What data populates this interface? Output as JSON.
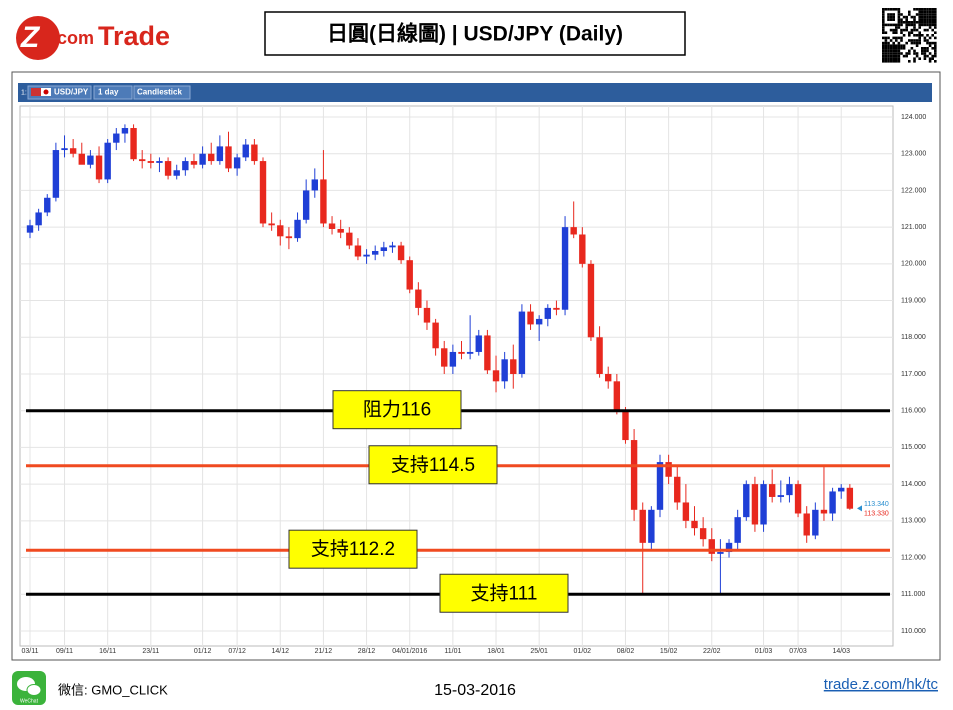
{
  "header": {
    "logo_mark": "Z",
    "logo_text": ".com",
    "logo_brand": "Trade",
    "title": "日圓(日線圖) | USD/JPY (Daily)"
  },
  "toolbar": {
    "index": "1:",
    "symbol": "USD/JPY",
    "interval": "1 day",
    "style": "Candlestick"
  },
  "chart_data": {
    "type": "candlestick",
    "categories": [
      "03/11",
      null,
      null,
      null,
      "09/11",
      null,
      null,
      null,
      null,
      "16/11",
      null,
      null,
      null,
      null,
      "23/11",
      null,
      null,
      null,
      null,
      null,
      "01/12",
      null,
      null,
      null,
      "07/12",
      null,
      null,
      null,
      null,
      "14/12",
      null,
      null,
      null,
      null,
      "21/12",
      null,
      null,
      null,
      null,
      "28/12",
      null,
      null,
      null,
      null,
      "04/01/2016",
      null,
      null,
      null,
      null,
      "11/01",
      null,
      null,
      null,
      null,
      "18/01",
      null,
      null,
      null,
      null,
      "25/01",
      null,
      null,
      null,
      null,
      "01/02",
      null,
      null,
      null,
      null,
      "08/02",
      null,
      null,
      null,
      null,
      "15/02",
      null,
      null,
      null,
      null,
      "22/02",
      null,
      null,
      null,
      null,
      null,
      "01/03",
      null,
      null,
      null,
      "07/03",
      null,
      null,
      null,
      null,
      "14/03",
      null
    ],
    "open": [
      120.85,
      121.05,
      121.4,
      121.8,
      123.1,
      123.15,
      123.0,
      122.7,
      122.95,
      122.3,
      123.3,
      123.55,
      123.7,
      122.85,
      122.8,
      122.75,
      122.8,
      122.4,
      122.55,
      122.8,
      122.7,
      123.0,
      122.8,
      123.2,
      122.6,
      122.9,
      123.25,
      122.8,
      121.1,
      121.05,
      120.75,
      120.7,
      121.2,
      122.0,
      122.3,
      121.1,
      120.95,
      120.85,
      120.5,
      120.2,
      120.25,
      120.35,
      120.45,
      120.5,
      120.1,
      119.3,
      118.8,
      118.4,
      117.7,
      117.2,
      117.6,
      117.55,
      117.6,
      118.05,
      117.1,
      116.8,
      117.4,
      117.0,
      118.7,
      118.35,
      118.5,
      118.8,
      118.75,
      121.0,
      120.8,
      120.0,
      118.0,
      117.0,
      116.8,
      116.0,
      115.2,
      113.3,
      112.4,
      113.3,
      114.6,
      114.2,
      113.5,
      113.0,
      112.8,
      112.5,
      112.1,
      112.15,
      112.4,
      113.1,
      114.0,
      112.9,
      114.0,
      113.65,
      113.7,
      114.0,
      113.2,
      112.6,
      113.3,
      113.2,
      113.8,
      113.9
    ],
    "high": [
      121.2,
      121.5,
      121.9,
      123.3,
      123.5,
      123.4,
      123.3,
      123.1,
      123.2,
      123.4,
      123.7,
      123.8,
      123.8,
      123.1,
      123.0,
      122.9,
      122.9,
      122.7,
      122.9,
      123.0,
      123.2,
      123.3,
      123.5,
      123.6,
      123.0,
      123.4,
      123.4,
      122.9,
      121.4,
      121.2,
      121.0,
      121.4,
      122.3,
      122.6,
      123.1,
      121.3,
      121.2,
      121.0,
      120.7,
      120.4,
      120.5,
      120.6,
      120.6,
      120.6,
      120.2,
      119.5,
      119.0,
      118.5,
      117.9,
      117.8,
      117.9,
      118.6,
      118.2,
      118.2,
      117.5,
      117.6,
      117.8,
      118.9,
      118.9,
      118.6,
      118.9,
      119.0,
      121.3,
      121.7,
      121.0,
      120.1,
      118.3,
      117.2,
      117.0,
      116.1,
      115.5,
      113.5,
      113.4,
      114.8,
      114.8,
      114.5,
      114.0,
      113.4,
      113.1,
      112.8,
      112.5,
      112.5,
      113.3,
      114.1,
      114.2,
      114.1,
      114.4,
      114.1,
      114.2,
      114.1,
      113.4,
      113.5,
      114.5,
      113.9,
      114.0,
      114.0
    ],
    "low": [
      120.7,
      120.9,
      121.3,
      121.7,
      122.9,
      122.9,
      122.8,
      122.6,
      122.2,
      122.2,
      123.1,
      123.3,
      122.8,
      122.6,
      122.6,
      122.5,
      122.3,
      122.3,
      122.4,
      122.6,
      122.6,
      122.7,
      122.7,
      122.5,
      122.4,
      122.8,
      122.7,
      121.0,
      120.9,
      120.5,
      120.4,
      120.6,
      121.1,
      121.8,
      121.0,
      120.8,
      120.7,
      120.4,
      120.1,
      120.0,
      120.1,
      120.2,
      120.3,
      120.0,
      119.2,
      118.6,
      118.2,
      117.5,
      117.0,
      117.0,
      117.4,
      117.4,
      117.5,
      117.0,
      116.5,
      116.6,
      116.6,
      116.9,
      118.2,
      117.9,
      118.3,
      118.6,
      118.6,
      120.7,
      119.9,
      117.9,
      116.9,
      116.6,
      115.9,
      115.1,
      113.0,
      111.0,
      112.2,
      113.1,
      114.0,
      113.3,
      112.8,
      112.6,
      112.3,
      111.9,
      111.0,
      112.0,
      112.2,
      113.0,
      112.7,
      112.7,
      113.5,
      113.5,
      113.5,
      113.1,
      112.4,
      112.5,
      113.0,
      113.0,
      113.6,
      113.3
    ],
    "close": [
      121.05,
      121.4,
      121.8,
      123.1,
      123.15,
      123.0,
      122.7,
      122.95,
      122.3,
      123.3,
      123.55,
      123.7,
      122.85,
      122.8,
      122.75,
      122.8,
      122.4,
      122.55,
      122.8,
      122.7,
      123.0,
      122.8,
      123.2,
      122.6,
      122.9,
      123.25,
      122.8,
      121.1,
      121.05,
      120.75,
      120.7,
      121.2,
      122.0,
      122.3,
      121.1,
      120.95,
      120.85,
      120.5,
      120.2,
      120.25,
      120.35,
      120.45,
      120.5,
      120.1,
      119.3,
      118.8,
      118.4,
      117.7,
      117.2,
      117.6,
      117.55,
      117.6,
      118.05,
      117.1,
      116.8,
      117.4,
      117.0,
      118.7,
      118.35,
      118.5,
      118.8,
      118.75,
      121.0,
      120.8,
      120.0,
      118.0,
      117.0,
      116.8,
      116.0,
      115.2,
      113.3,
      112.4,
      113.3,
      114.6,
      114.2,
      113.5,
      113.0,
      112.8,
      112.5,
      112.1,
      112.15,
      112.4,
      113.1,
      114.0,
      112.9,
      114.0,
      113.65,
      113.7,
      114.0,
      113.2,
      112.6,
      113.3,
      113.2,
      113.8,
      113.9,
      113.33
    ],
    "up_color": "#1f3fd6",
    "down_color": "#e8281e",
    "ylim": [
      109.59,
      124.3
    ],
    "yticks": [
      {
        "value": 110,
        "label": "110.000"
      },
      {
        "value": 111,
        "label": "111.000"
      },
      {
        "value": 112,
        "label": "112.000"
      },
      {
        "value": 113,
        "label": "113.000"
      },
      {
        "value": 114,
        "label": "114.000"
      },
      {
        "value": 115,
        "label": "115.000"
      },
      {
        "value": 116,
        "label": "116.000"
      },
      {
        "value": 117,
        "label": "117.000"
      },
      {
        "value": 118,
        "label": "118.000"
      },
      {
        "value": 119,
        "label": "119.000"
      },
      {
        "value": 120,
        "label": "120.000"
      },
      {
        "value": 121,
        "label": "121.000"
      },
      {
        "value": 122,
        "label": "122.000"
      },
      {
        "value": 123,
        "label": "123.000"
      },
      {
        "value": 124,
        "label": "124.000"
      }
    ],
    "grid": true,
    "levels": [
      {
        "value": 116,
        "label": "阻力116",
        "color": "#000000"
      },
      {
        "value": 114.5,
        "label": "支持114.5",
        "color": "#f04a20"
      },
      {
        "value": 112.2,
        "label": "支持112.2",
        "color": "#f04a20"
      },
      {
        "value": 111,
        "label": "支持111",
        "color": "#000000"
      }
    ],
    "price_tags": [
      {
        "value": 113.34,
        "label": "113.340",
        "color": "#2a8fd0"
      },
      {
        "value": 113.33,
        "label": "113.330",
        "color": "#e8281e"
      }
    ]
  },
  "footer": {
    "icon_label": "WeChat",
    "wechat": "微信: GMO_CLICK",
    "date": "15-03-2016",
    "link": "trade.z.com/hk/tc"
  }
}
